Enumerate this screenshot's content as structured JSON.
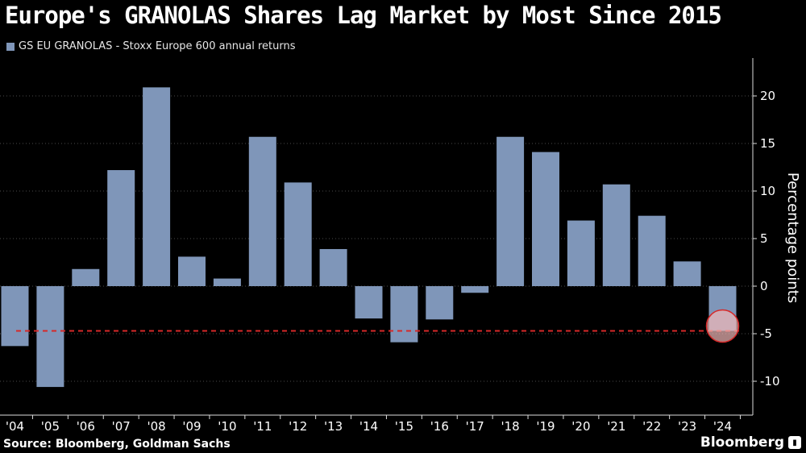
{
  "title": "Europe's GRANOLAS Shares Lag Market by Most Since 2015",
  "source": "Source: Bloomberg, Goldman Sachs",
  "brand": "Bloomberg",
  "colors": {
    "bar": "#7f96b9",
    "reference_line": "#d62828",
    "highlight": "#f2b8b8"
  },
  "chart_data": {
    "type": "bar",
    "series": [
      {
        "name": "GS EU GRANOLAS - Stoxx Europe 600 annual returns",
        "values": [
          -6.3,
          -10.6,
          1.8,
          12.2,
          20.9,
          3.1,
          0.8,
          15.7,
          10.9,
          3.9,
          -3.4,
          -5.9,
          -3.5,
          -0.7,
          15.7,
          14.1,
          6.9,
          10.7,
          7.4,
          2.6,
          -4.7
        ]
      }
    ],
    "categories": [
      "'04",
      "'05",
      "'06",
      "'07",
      "'08",
      "'09",
      "'10",
      "'11",
      "'12",
      "'13",
      "'14",
      "'15",
      "'16",
      "'17",
      "'18",
      "'19",
      "'20",
      "'21",
      "'22",
      "'23",
      "'24"
    ],
    "ylabel": "Percentage points",
    "yticks": [
      "20",
      "15",
      "10",
      "5",
      "0",
      "-5",
      "-10"
    ],
    "ylim": [
      -13,
      24
    ],
    "reference_line": -4.7,
    "highlight_category": "'24",
    "legend": "top-left",
    "grid": true
  }
}
